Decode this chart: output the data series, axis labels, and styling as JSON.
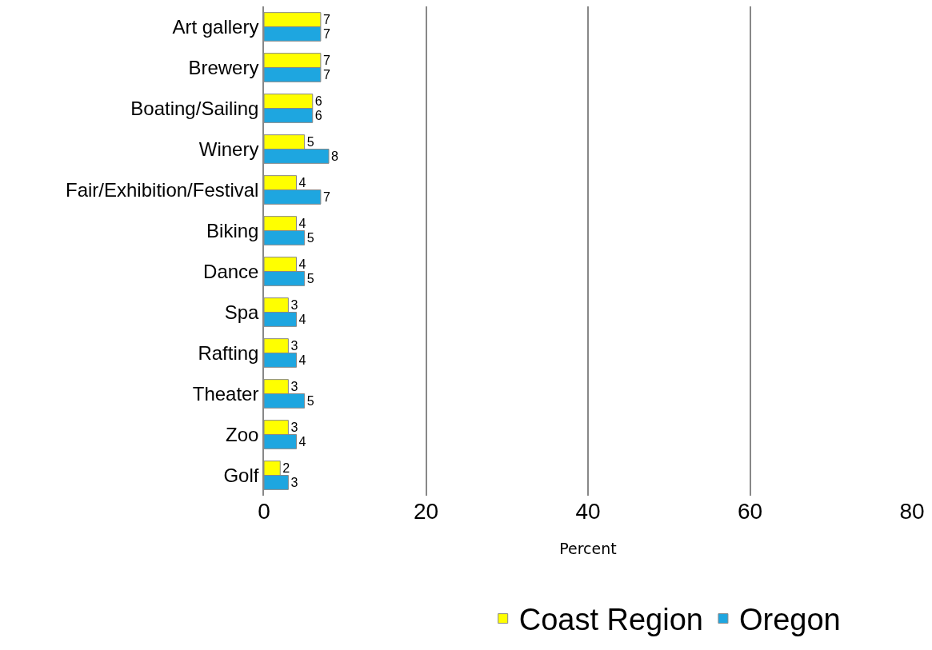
{
  "chart_data": {
    "type": "bar",
    "orientation": "horizontal",
    "xlabel": "Percent",
    "categories": [
      "Art gallery",
      "Brewery",
      "Boating/Sailing",
      "Winery",
      "Fair/Exhibition/Festival",
      "Biking",
      "Dance",
      "Spa",
      "Rafting",
      "Theater",
      "Zoo",
      "Golf"
    ],
    "series": [
      {
        "name": "Coast Region",
        "color": "#ffff00",
        "values": [
          7,
          7,
          6,
          5,
          4,
          4,
          4,
          3,
          3,
          3,
          3,
          2
        ]
      },
      {
        "name": "Oregon",
        "color": "#1ea6e0",
        "values": [
          7,
          7,
          6,
          8,
          7,
          5,
          5,
          4,
          4,
          5,
          4,
          3
        ]
      }
    ],
    "xlim": [
      0,
      80
    ],
    "xticks": [
      0,
      20,
      40,
      60,
      80
    ],
    "grid": "x",
    "legend": "bottom",
    "data_labels": true
  }
}
